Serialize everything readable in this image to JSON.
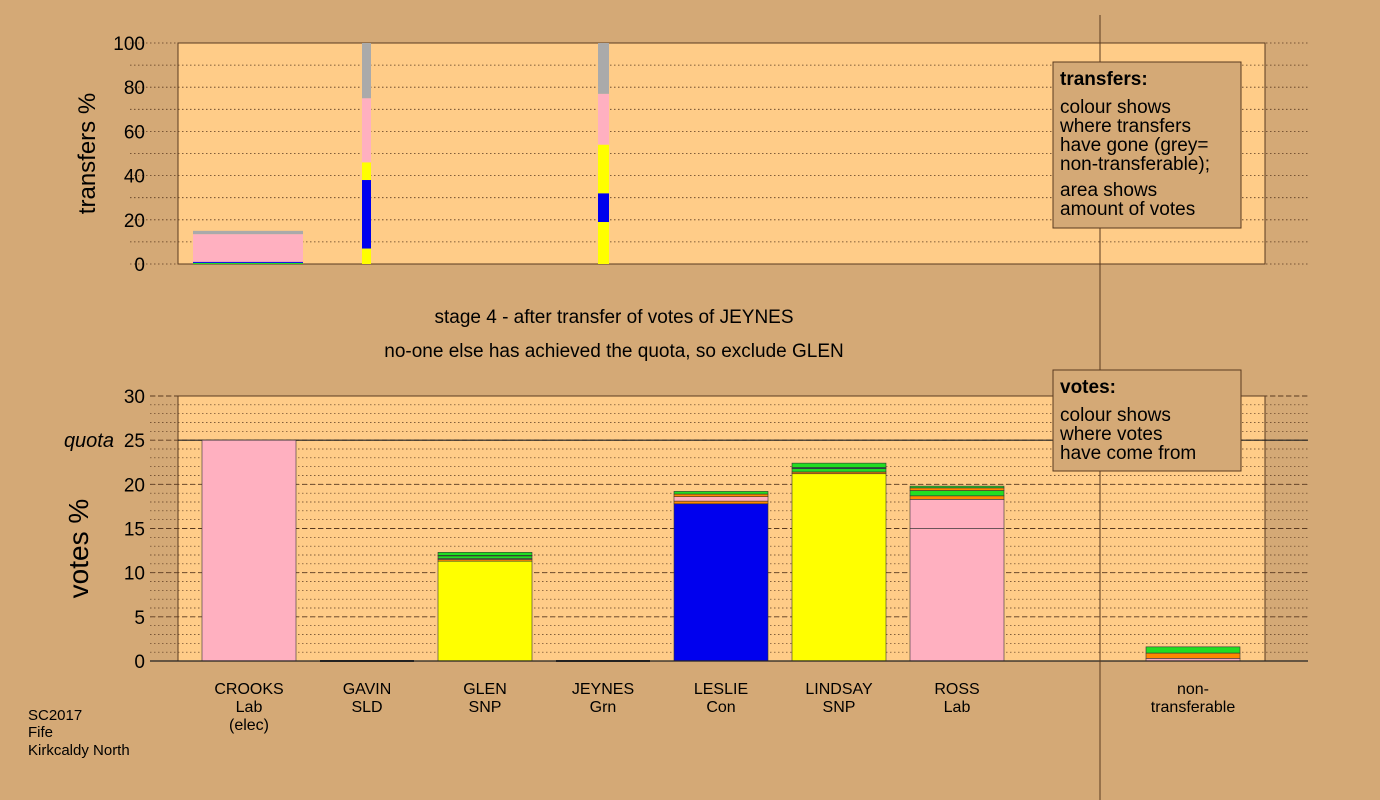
{
  "stage_title": "stage 4 - after transfer of votes of JEYNES",
  "stage_subtitle": "no-one else has achieved the quota, so exclude GLEN",
  "footer": [
    "SC2017",
    "Fife",
    "Kirkcaldy North"
  ],
  "colors": {
    "background": "#d4a976",
    "plot_bg": "#ffcc88",
    "pink": "#ffb0c0",
    "yellow": "#ffff00",
    "blue": "#0000ee",
    "green": "#22dd22",
    "orange": "#ff8800",
    "grey": "#aaaaaa"
  },
  "legend_transfers": {
    "heading": "transfers:",
    "lines1": [
      "colour shows",
      "where transfers",
      "have gone (grey=",
      "non-transferable);"
    ],
    "lines2": [
      "area shows",
      "amount of votes"
    ]
  },
  "legend_votes": {
    "heading": "votes:",
    "lines": [
      "colour shows",
      "where votes",
      "have come from"
    ]
  },
  "chart_data": [
    {
      "type": "bar",
      "name": "transfers",
      "ylabel": "transfers %",
      "ylim": [
        0,
        100
      ],
      "yticks": [
        0,
        20,
        40,
        60,
        80,
        100
      ],
      "grid": "dotted",
      "bars": [
        {
          "category": "CROOKS",
          "width": "wide",
          "segments": [
            {
              "color": "green",
              "value": 0.5
            },
            {
              "color": "blue",
              "value": 0.5
            },
            {
              "color": "pink",
              "value": 12.5
            },
            {
              "color": "grey",
              "value": 1.5
            }
          ]
        },
        {
          "category": "GAVIN",
          "width": "narrow",
          "segments": [
            {
              "color": "yellow",
              "value": 7
            },
            {
              "color": "blue",
              "value": 31
            },
            {
              "color": "yellow",
              "value": 8
            },
            {
              "color": "pink",
              "value": 29
            },
            {
              "color": "grey",
              "value": 25
            }
          ]
        },
        {
          "category": "JEYNES",
          "width": "narrow",
          "segments": [
            {
              "color": "yellow",
              "value": 19
            },
            {
              "color": "blue",
              "value": 13
            },
            {
              "color": "yellow",
              "value": 22
            },
            {
              "color": "pink",
              "value": 23
            },
            {
              "color": "grey",
              "value": 23
            }
          ]
        }
      ]
    },
    {
      "type": "bar",
      "name": "votes",
      "ylabel": "votes %",
      "ylim": [
        0,
        30
      ],
      "yticks": [
        0,
        5,
        10,
        15,
        20,
        25,
        30
      ],
      "quota": {
        "label": "quota",
        "value": 25
      },
      "grid": "dashed",
      "categories": [
        {
          "name": "CROOKS",
          "lines": [
            "CROOKS",
            "Lab",
            "(elec)"
          ],
          "segments": [
            {
              "color": "pink",
              "value": 25
            }
          ]
        },
        {
          "name": "GAVIN",
          "lines": [
            "GAVIN",
            "SLD"
          ],
          "segments": []
        },
        {
          "name": "GLEN",
          "lines": [
            "GLEN",
            "SNP"
          ],
          "segments": [
            {
              "color": "yellow",
              "value": 11.3
            },
            {
              "color": "orange",
              "value": 0.2
            },
            {
              "color": "pink",
              "value": 0.1
            },
            {
              "color": "green",
              "value": 0.3
            },
            {
              "color": "blue",
              "value": 0.05
            },
            {
              "color": "green",
              "value": 0.35
            }
          ]
        },
        {
          "name": "JEYNES",
          "lines": [
            "JEYNES",
            "Grn"
          ],
          "segments": []
        },
        {
          "name": "LESLIE",
          "lines": [
            "LESLIE",
            "Con"
          ],
          "segments": [
            {
              "color": "blue",
              "value": 17.8
            },
            {
              "color": "orange",
              "value": 0.3
            },
            {
              "color": "pink",
              "value": 0.5
            },
            {
              "color": "orange",
              "value": 0.3
            },
            {
              "color": "green",
              "value": 0.3
            }
          ]
        },
        {
          "name": "LINDSAY",
          "lines": [
            "LINDSAY",
            "SNP"
          ],
          "segments": [
            {
              "color": "yellow",
              "value": 21.2
            },
            {
              "color": "orange",
              "value": 0.2
            },
            {
              "color": "green",
              "value": 0.4
            },
            {
              "color": "blue",
              "value": 0.1
            },
            {
              "color": "green",
              "value": 0.5
            }
          ]
        },
        {
          "name": "ROSS",
          "lines": [
            "ROSS",
            "Lab"
          ],
          "segments": [
            {
              "color": "pink",
              "value": 15
            },
            {
              "color": "pink",
              "value": 3.3
            },
            {
              "color": "orange",
              "value": 0.4
            },
            {
              "color": "green",
              "value": 0.6
            },
            {
              "color": "orange",
              "value": 0.3
            },
            {
              "color": "green",
              "value": 0.2
            }
          ]
        },
        {
          "name": "non-transferable",
          "lines": [
            "non-",
            "transferable"
          ],
          "segments": [
            {
              "color": "pink",
              "value": 0.3
            },
            {
              "color": "orange",
              "value": 0.6
            },
            {
              "color": "green",
              "value": 0.7
            }
          ]
        }
      ]
    }
  ]
}
